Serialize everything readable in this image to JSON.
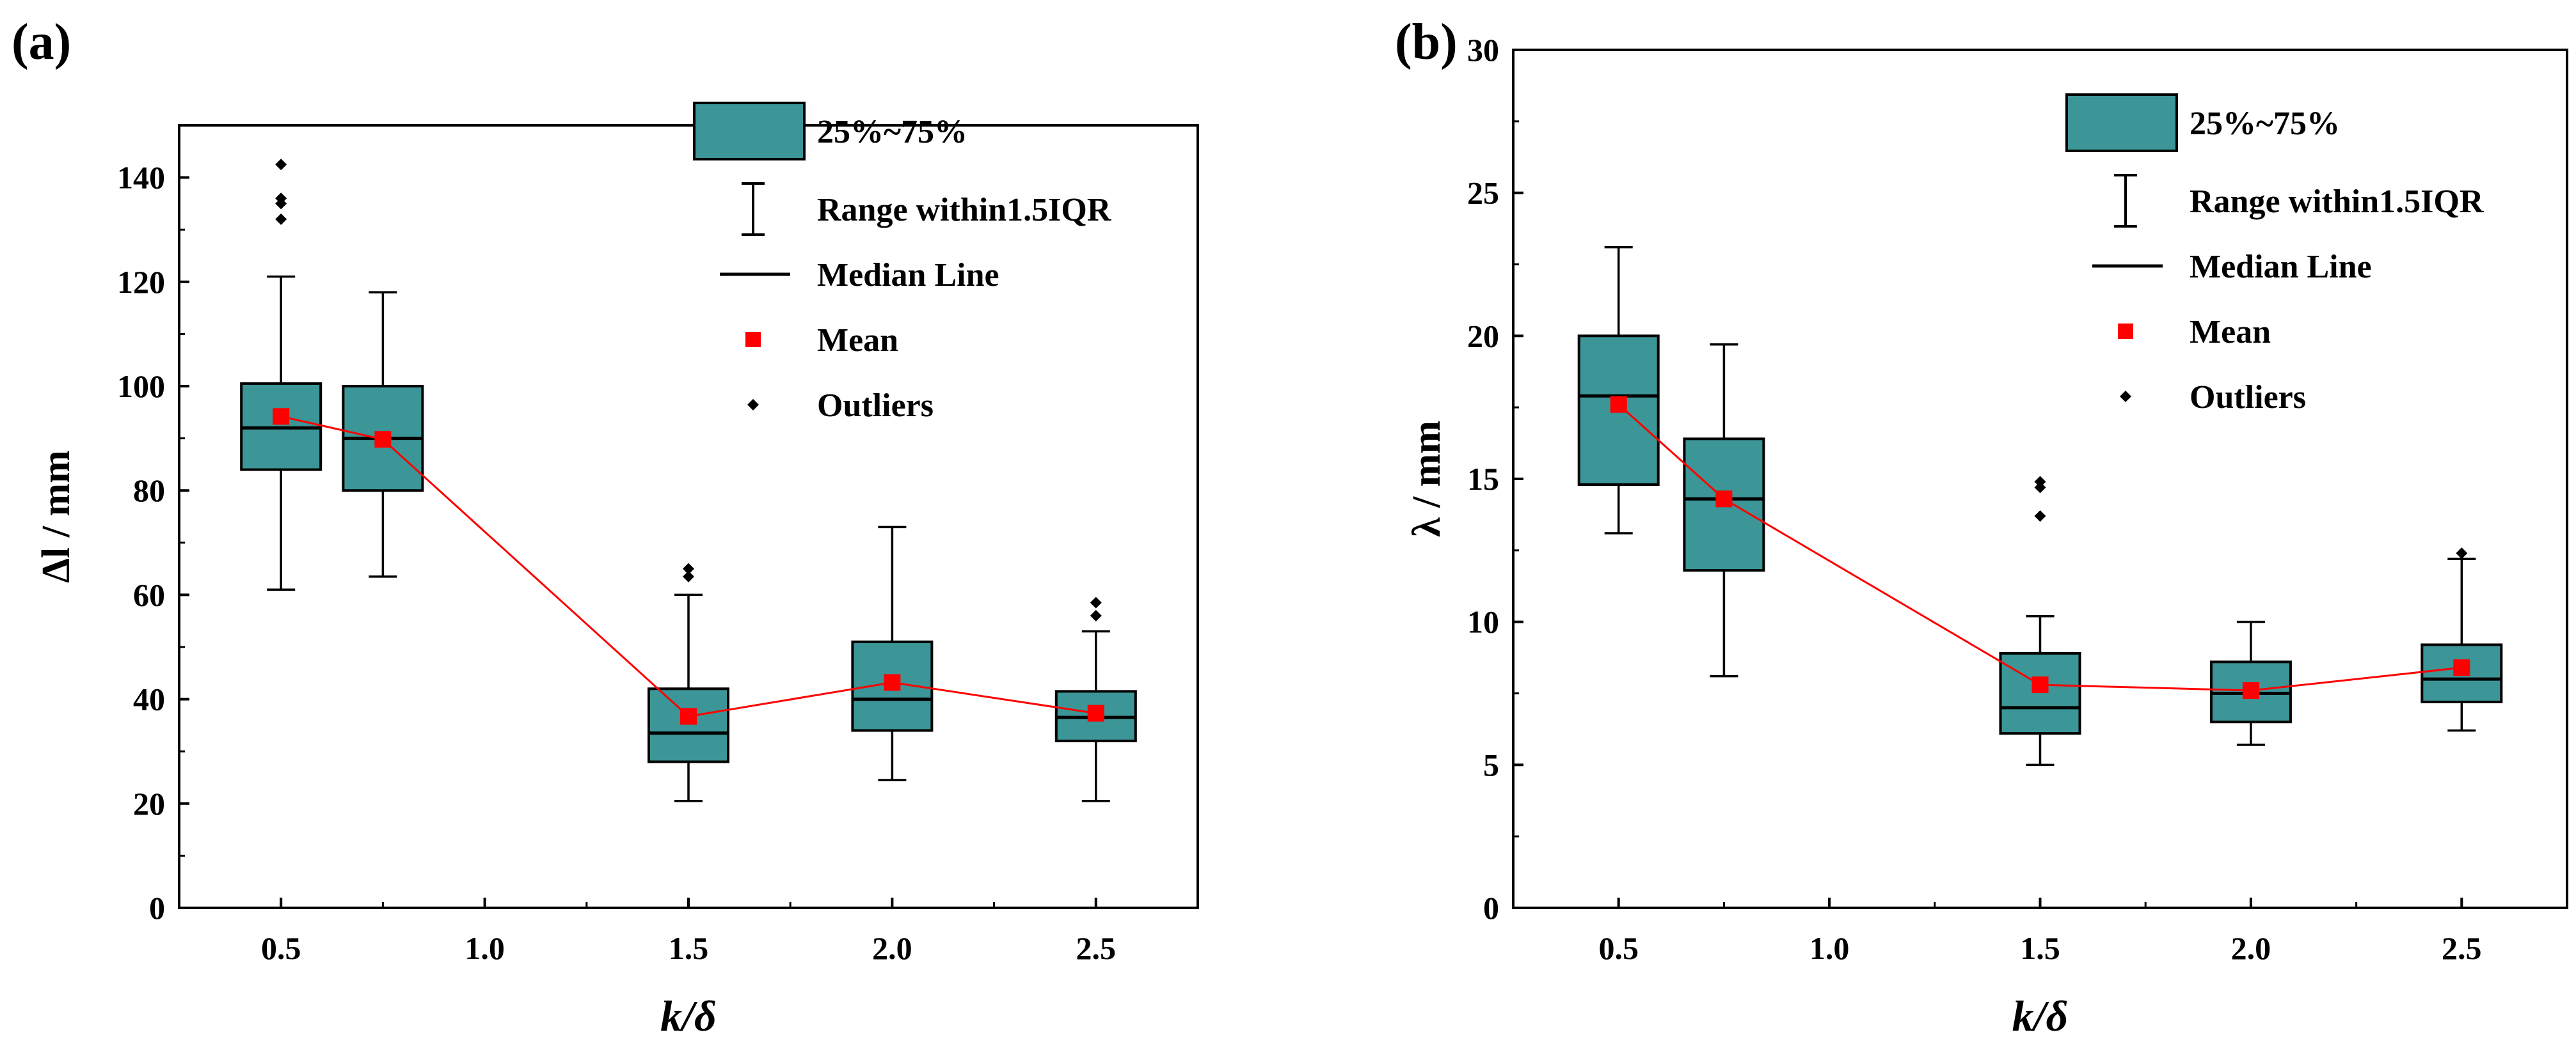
{
  "chart_data": [
    {
      "panel_label": "(a)",
      "type": "box",
      "xlabel": "k/δ",
      "ylabel": "Δl / mm",
      "xlim": [
        0.25,
        2.75
      ],
      "ylim": [
        0,
        150
      ],
      "xticks": [
        "0.5",
        "1.0",
        "1.5",
        "2.0",
        "2.5"
      ],
      "yticks": [
        "0",
        "20",
        "40",
        "60",
        "80",
        "100",
        "120",
        "140"
      ],
      "boxes": [
        {
          "x": 0.5,
          "q1": 84,
          "median": 92,
          "q3": 100.5,
          "mean": 94.2,
          "whisker_low": 61,
          "whisker_high": 121,
          "outliers": [
            132,
            135,
            136,
            142.5
          ]
        },
        {
          "x": 0.75,
          "q1": 80,
          "median": 90,
          "q3": 100,
          "mean": 89.8,
          "whisker_low": 63.5,
          "whisker_high": 118,
          "outliers": []
        },
        {
          "x": 1.5,
          "q1": 28,
          "median": 33.5,
          "q3": 42,
          "mean": 36.7,
          "whisker_low": 20.5,
          "whisker_high": 60,
          "outliers": [
            63.5,
            65
          ]
        },
        {
          "x": 2.0,
          "q1": 34,
          "median": 40,
          "q3": 51,
          "mean": 43.2,
          "whisker_low": 24.5,
          "whisker_high": 73,
          "outliers": []
        },
        {
          "x": 2.5,
          "q1": 32,
          "median": 36.5,
          "q3": 41.5,
          "mean": 37.3,
          "whisker_low": 20.5,
          "whisker_high": 53,
          "outliers": [
            56,
            58.5
          ]
        }
      ],
      "legend": {
        "box": "25%~75%",
        "whisker": "Range within1.5IQR",
        "median": "Median Line",
        "mean": "Mean",
        "outliers": "Outliers"
      }
    },
    {
      "panel_label": "(b)",
      "type": "box",
      "xlabel": "k/δ",
      "ylabel": "λ / mm",
      "xlim": [
        0.25,
        2.75
      ],
      "ylim": [
        0,
        30
      ],
      "xticks": [
        "0.5",
        "1.0",
        "1.5",
        "2.0",
        "2.5"
      ],
      "yticks": [
        "0",
        "5",
        "10",
        "15",
        "20",
        "25",
        "30"
      ],
      "boxes": [
        {
          "x": 0.5,
          "q1": 14.8,
          "median": 17.9,
          "q3": 20,
          "mean": 17.6,
          "whisker_low": 13.1,
          "whisker_high": 23.1,
          "outliers": []
        },
        {
          "x": 0.75,
          "q1": 11.8,
          "median": 14.3,
          "q3": 16.4,
          "mean": 14.3,
          "whisker_low": 8.1,
          "whisker_high": 19.7,
          "outliers": []
        },
        {
          "x": 1.5,
          "q1": 6.1,
          "median": 7.0,
          "q3": 8.9,
          "mean": 7.8,
          "whisker_low": 5.0,
          "whisker_high": 10.2,
          "outliers": [
            13.7,
            14.7,
            14.9
          ]
        },
        {
          "x": 2.0,
          "q1": 6.5,
          "median": 7.5,
          "q3": 8.6,
          "mean": 7.6,
          "whisker_low": 5.7,
          "whisker_high": 10.0,
          "outliers": []
        },
        {
          "x": 2.5,
          "q1": 7.2,
          "median": 8.0,
          "q3": 9.2,
          "mean": 8.4,
          "whisker_low": 6.2,
          "whisker_high": 12.2,
          "outliers": [
            12.4
          ]
        }
      ],
      "legend": {
        "box": "25%~75%",
        "whisker": "Range within1.5IQR",
        "median": "Median Line",
        "mean": "Mean",
        "outliers": "Outliers"
      }
    }
  ],
  "style": {
    "box_fill": "#3c9596",
    "mean_color": "#ff0000",
    "axis_color": "#000000"
  }
}
